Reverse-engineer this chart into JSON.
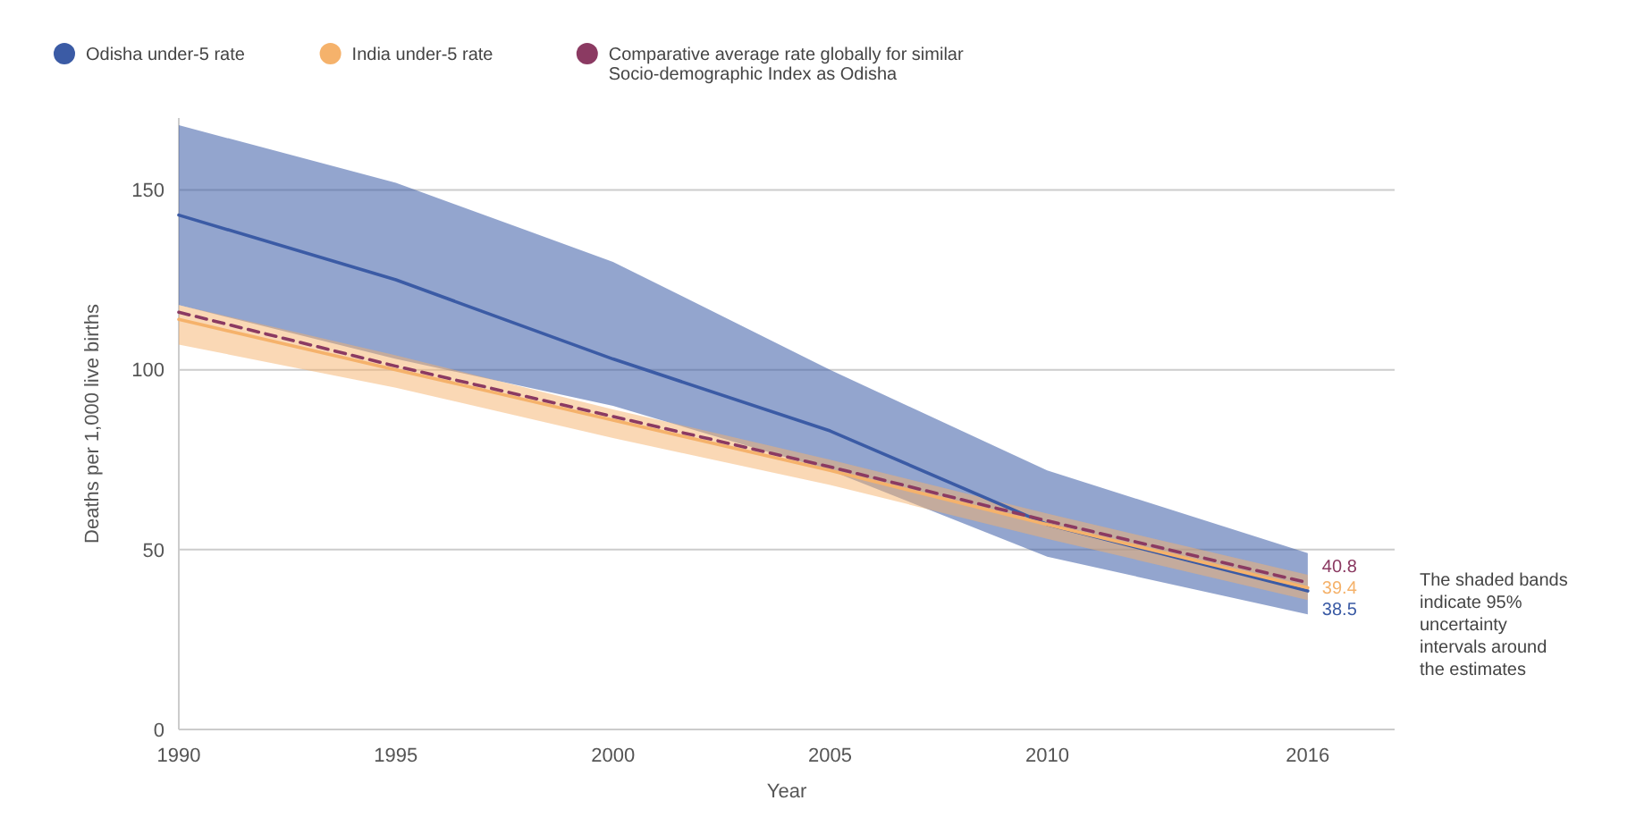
{
  "chart_data": {
    "type": "line",
    "xlabel": "Year",
    "ylabel": "Deaths per 1,000 live births",
    "x": [
      1990,
      1995,
      2000,
      2005,
      2010,
      2016
    ],
    "xlim": [
      1990,
      2018
    ],
    "xticks": [
      1990,
      1995,
      2000,
      2005,
      2010,
      2016
    ],
    "ylim": [
      0,
      170
    ],
    "yticks": [
      0,
      50,
      100,
      150
    ],
    "grid": "y",
    "legend": "top left",
    "marker": "none",
    "series": [
      {
        "name": "Odisha under-5 rate",
        "color": "#3b5ba5",
        "values": [
          143,
          125,
          103,
          83,
          57,
          38.5
        ],
        "lower": [
          118,
          103,
          90,
          72,
          48,
          32
        ],
        "upper": [
          168,
          152,
          130,
          100,
          72,
          49
        ],
        "value_labels": [
          null,
          null,
          null,
          null,
          null,
          "38.5"
        ]
      },
      {
        "name": "India under-5 rate",
        "color": "#f5b26b",
        "values": [
          114,
          100,
          86,
          72,
          57,
          39.4
        ],
        "lower": [
          107,
          95,
          81,
          68,
          53,
          36
        ],
        "upper": [
          118,
          104,
          89,
          75,
          60,
          43
        ],
        "value_labels": [
          null,
          null,
          null,
          null,
          null,
          "39.4"
        ]
      },
      {
        "name": "Comparative average rate globally for similar Socio-demographic Index as Odisha",
        "color": "#8b3a62",
        "line_style": "dashed",
        "values": [
          116,
          101,
          87,
          73,
          58,
          40.8
        ],
        "value_labels": [
          null,
          null,
          null,
          null,
          null,
          "40.8"
        ]
      }
    ],
    "annotations": [
      "The shaded bands indicate 95% uncertainty intervals around the estimates"
    ]
  }
}
